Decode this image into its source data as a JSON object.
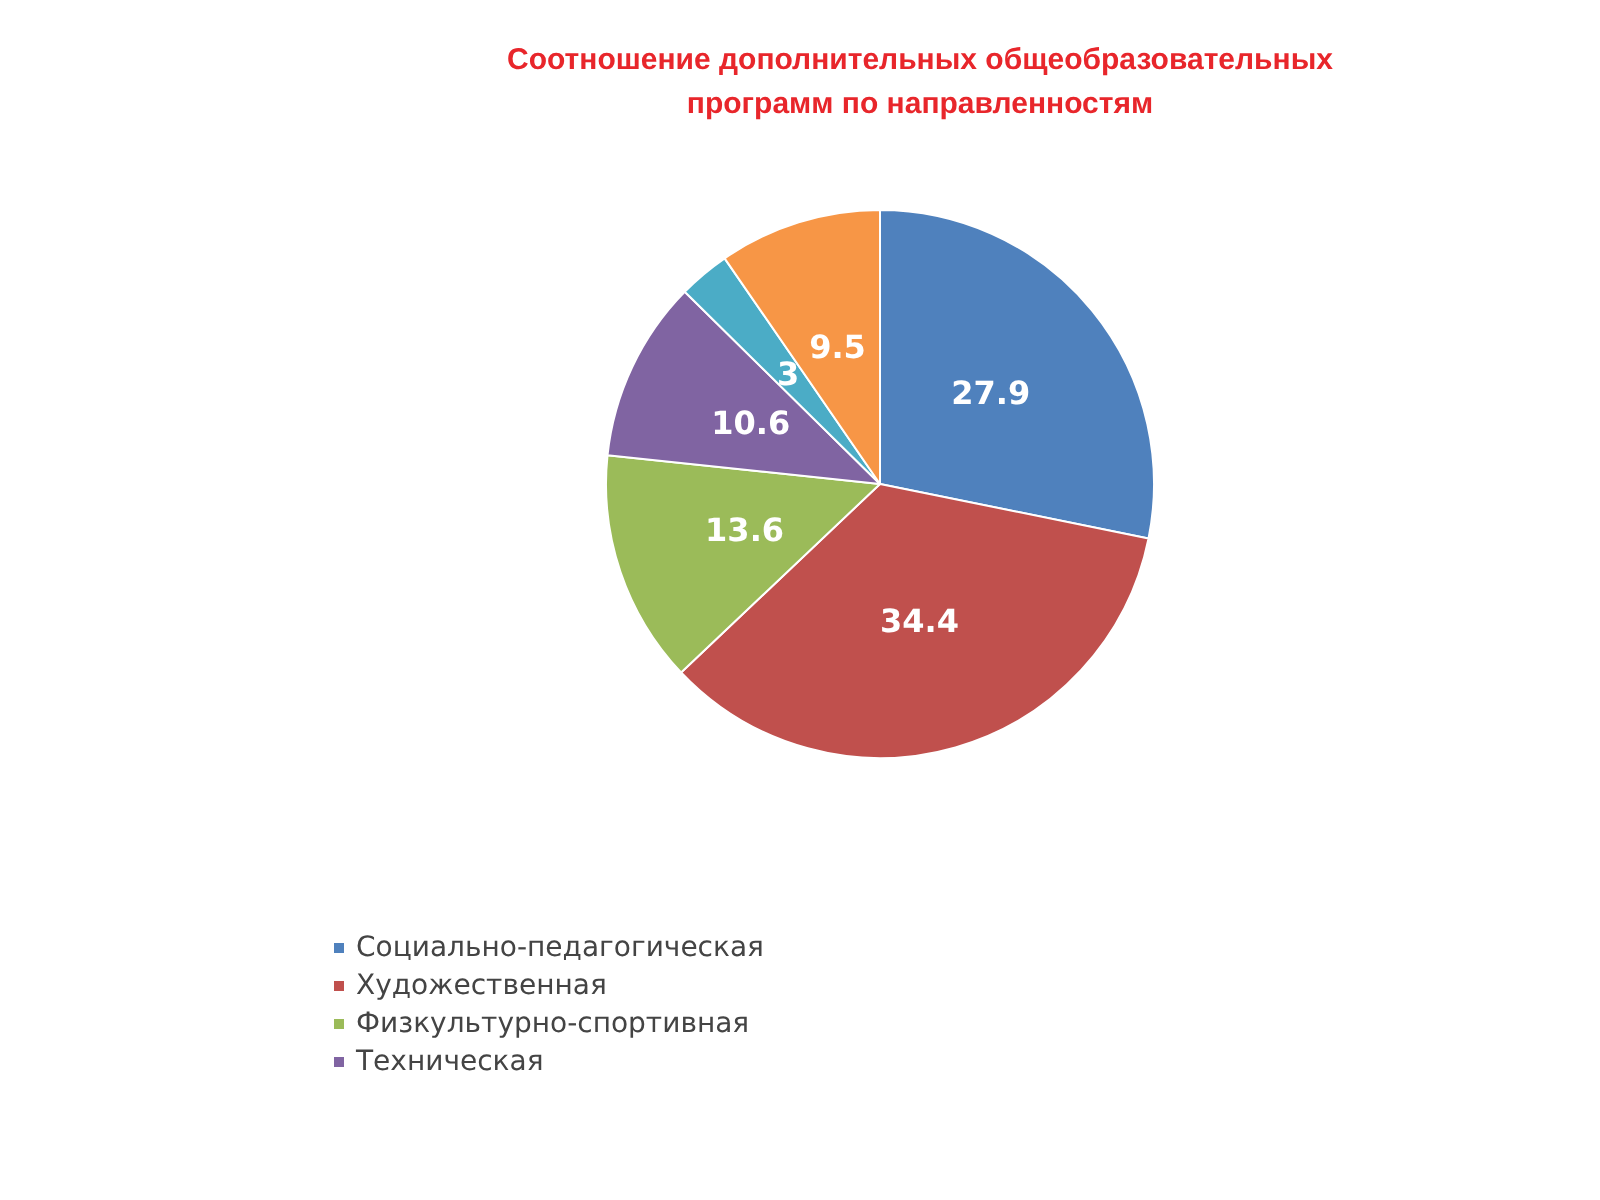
{
  "chart_data": {
    "type": "pie",
    "title": "Соотношение дополнительных общеобразовательных\nпрограмм по направленностям",
    "categories": [
      "Социально-педагогическая",
      "Художественная",
      "Физкультурно-спортивная",
      "Техническая",
      null,
      null
    ],
    "values": [
      27.9,
      34.4,
      13.6,
      10.6,
      3,
      9.5
    ],
    "colors": [
      "#4f81bd",
      "#c0504d",
      "#9bbb59",
      "#8064a2",
      "#4bacc6",
      "#f79646"
    ],
    "data_labels": true,
    "legend": "bottom"
  }
}
